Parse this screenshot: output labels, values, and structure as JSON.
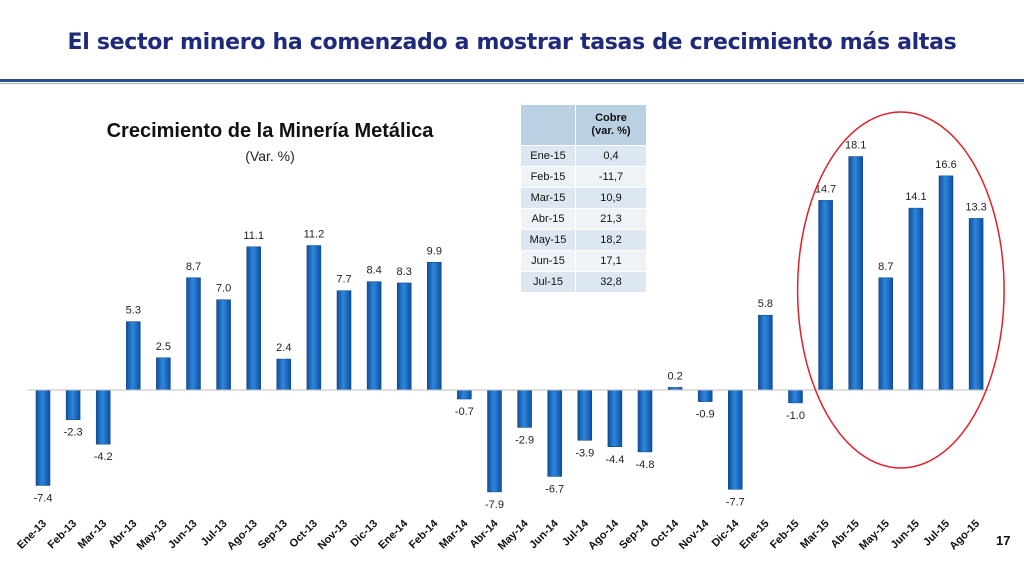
{
  "slide": {
    "title": "El sector minero ha comenzado a mostrar tasas de crecimiento más altas",
    "page_number": "17"
  },
  "chart_data": {
    "type": "bar",
    "title": "Crecimiento de la Minería Metálica",
    "subtitle": "(Var. %)",
    "categories": [
      "Ene-13",
      "Feb-13",
      "Mar-13",
      "Abr-13",
      "May-13",
      "Jun-13",
      "Jul-13",
      "Ago-13",
      "Sep-13",
      "Oct-13",
      "Nov-13",
      "Dic-13",
      "Ene-14",
      "Feb-14",
      "Mar-14",
      "Abr-14",
      "May-14",
      "Jun-14",
      "Jul-14",
      "Ago-14",
      "Sep-14",
      "Oct-14",
      "Nov-14",
      "Dic-14",
      "Ene-15",
      "Feb-15",
      "Mar-15",
      "Abr-15",
      "May-15",
      "Jun-15",
      "Jul-15",
      "Ago-15"
    ],
    "values": [
      -7.4,
      -2.3,
      -4.2,
      5.3,
      2.5,
      8.7,
      7.0,
      11.1,
      2.4,
      11.2,
      7.7,
      8.4,
      8.3,
      9.9,
      -0.7,
      -7.9,
      -2.9,
      -6.7,
      -3.9,
      -4.4,
      -4.8,
      0.2,
      -0.9,
      -7.7,
      5.8,
      -1.0,
      14.7,
      18.1,
      8.7,
      14.1,
      16.6,
      13.3
    ],
    "data_labels": [
      "-7.4",
      "-2.3",
      "-4.2",
      "5.3",
      "2.5",
      "8.7",
      "7.0",
      "11.1",
      "2.4",
      "11.2",
      "7.7",
      "8.4",
      "8.3",
      "9.9",
      "-0.7",
      "-7.9",
      "-2.9",
      "-6.7",
      "-3.9",
      "-4.4",
      "-4.8",
      "0.2",
      "-0.9",
      "-7.7",
      "5.8",
      "-1.0",
      "14.7",
      "18.1",
      "8.7",
      "14.1",
      "16.6",
      "13.3"
    ],
    "ylim": [
      -8,
      19
    ],
    "grid": false,
    "legend": false,
    "bar_color": "#1f6fc6",
    "highlight_color": "#e0202a",
    "highlight_categories": [
      "Mar-15",
      "Ago-15"
    ]
  },
  "table": {
    "header": "Cobre",
    "subheader": "(var. %)",
    "rows": [
      {
        "month": "Ene-15",
        "value": "0,4"
      },
      {
        "month": "Feb-15",
        "value": "-11,7"
      },
      {
        "month": "Mar-15",
        "value": "10,9"
      },
      {
        "month": "Abr-15",
        "value": "21,3"
      },
      {
        "month": "May-15",
        "value": "18,2"
      },
      {
        "month": "Jun-15",
        "value": "17,1"
      },
      {
        "month": "Jul-15",
        "value": "32,8"
      }
    ]
  }
}
